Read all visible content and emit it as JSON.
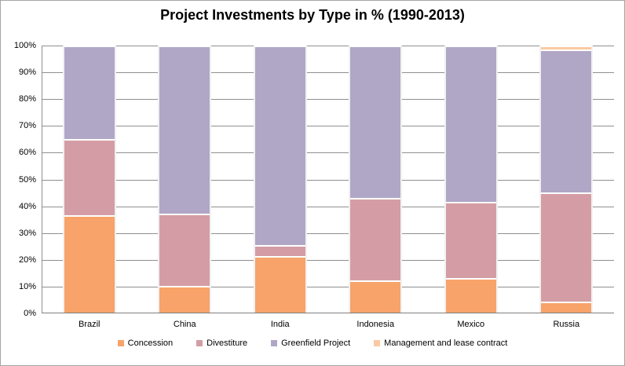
{
  "chart_data": {
    "type": "bar",
    "stacked": true,
    "orientation": "vertical",
    "title": "Project Investments by Type in % (1990-2013)",
    "categories": [
      "Brazil",
      "China",
      "India",
      "Indonesia",
      "Mexico",
      "Russia"
    ],
    "series": [
      {
        "name": "Concession",
        "color": "#F7A369",
        "values": [
          36.6,
          10.4,
          21.4,
          12.2,
          13.2,
          4.4
        ]
      },
      {
        "name": "Divestiture",
        "color": "#D49DA5",
        "values": [
          28.5,
          26.9,
          4.0,
          31.0,
          28.5,
          40.9
        ]
      },
      {
        "name": "Greenfield Project",
        "color": "#B0A7C6",
        "values": [
          34.9,
          62.7,
          74.6,
          56.8,
          58.3,
          53.2
        ]
      },
      {
        "name": "Management and lease contract",
        "color": "#FAC9A2",
        "values": [
          0,
          0,
          0,
          0,
          0,
          1.5
        ]
      }
    ],
    "ylabel": "",
    "xlabel": "",
    "ylim": [
      0,
      100
    ],
    "y_tick_step": 10,
    "y_tick_labels": [
      "0%",
      "10%",
      "20%",
      "30%",
      "40%",
      "50%",
      "60%",
      "70%",
      "80%",
      "90%",
      "100%"
    ],
    "grid": true,
    "gridline_color": "#8f8f8f",
    "legend_position": "bottom",
    "legend_labels": [
      "Concession",
      "Divestiture",
      "Greenfield Project",
      "Management and lease contract"
    ]
  }
}
